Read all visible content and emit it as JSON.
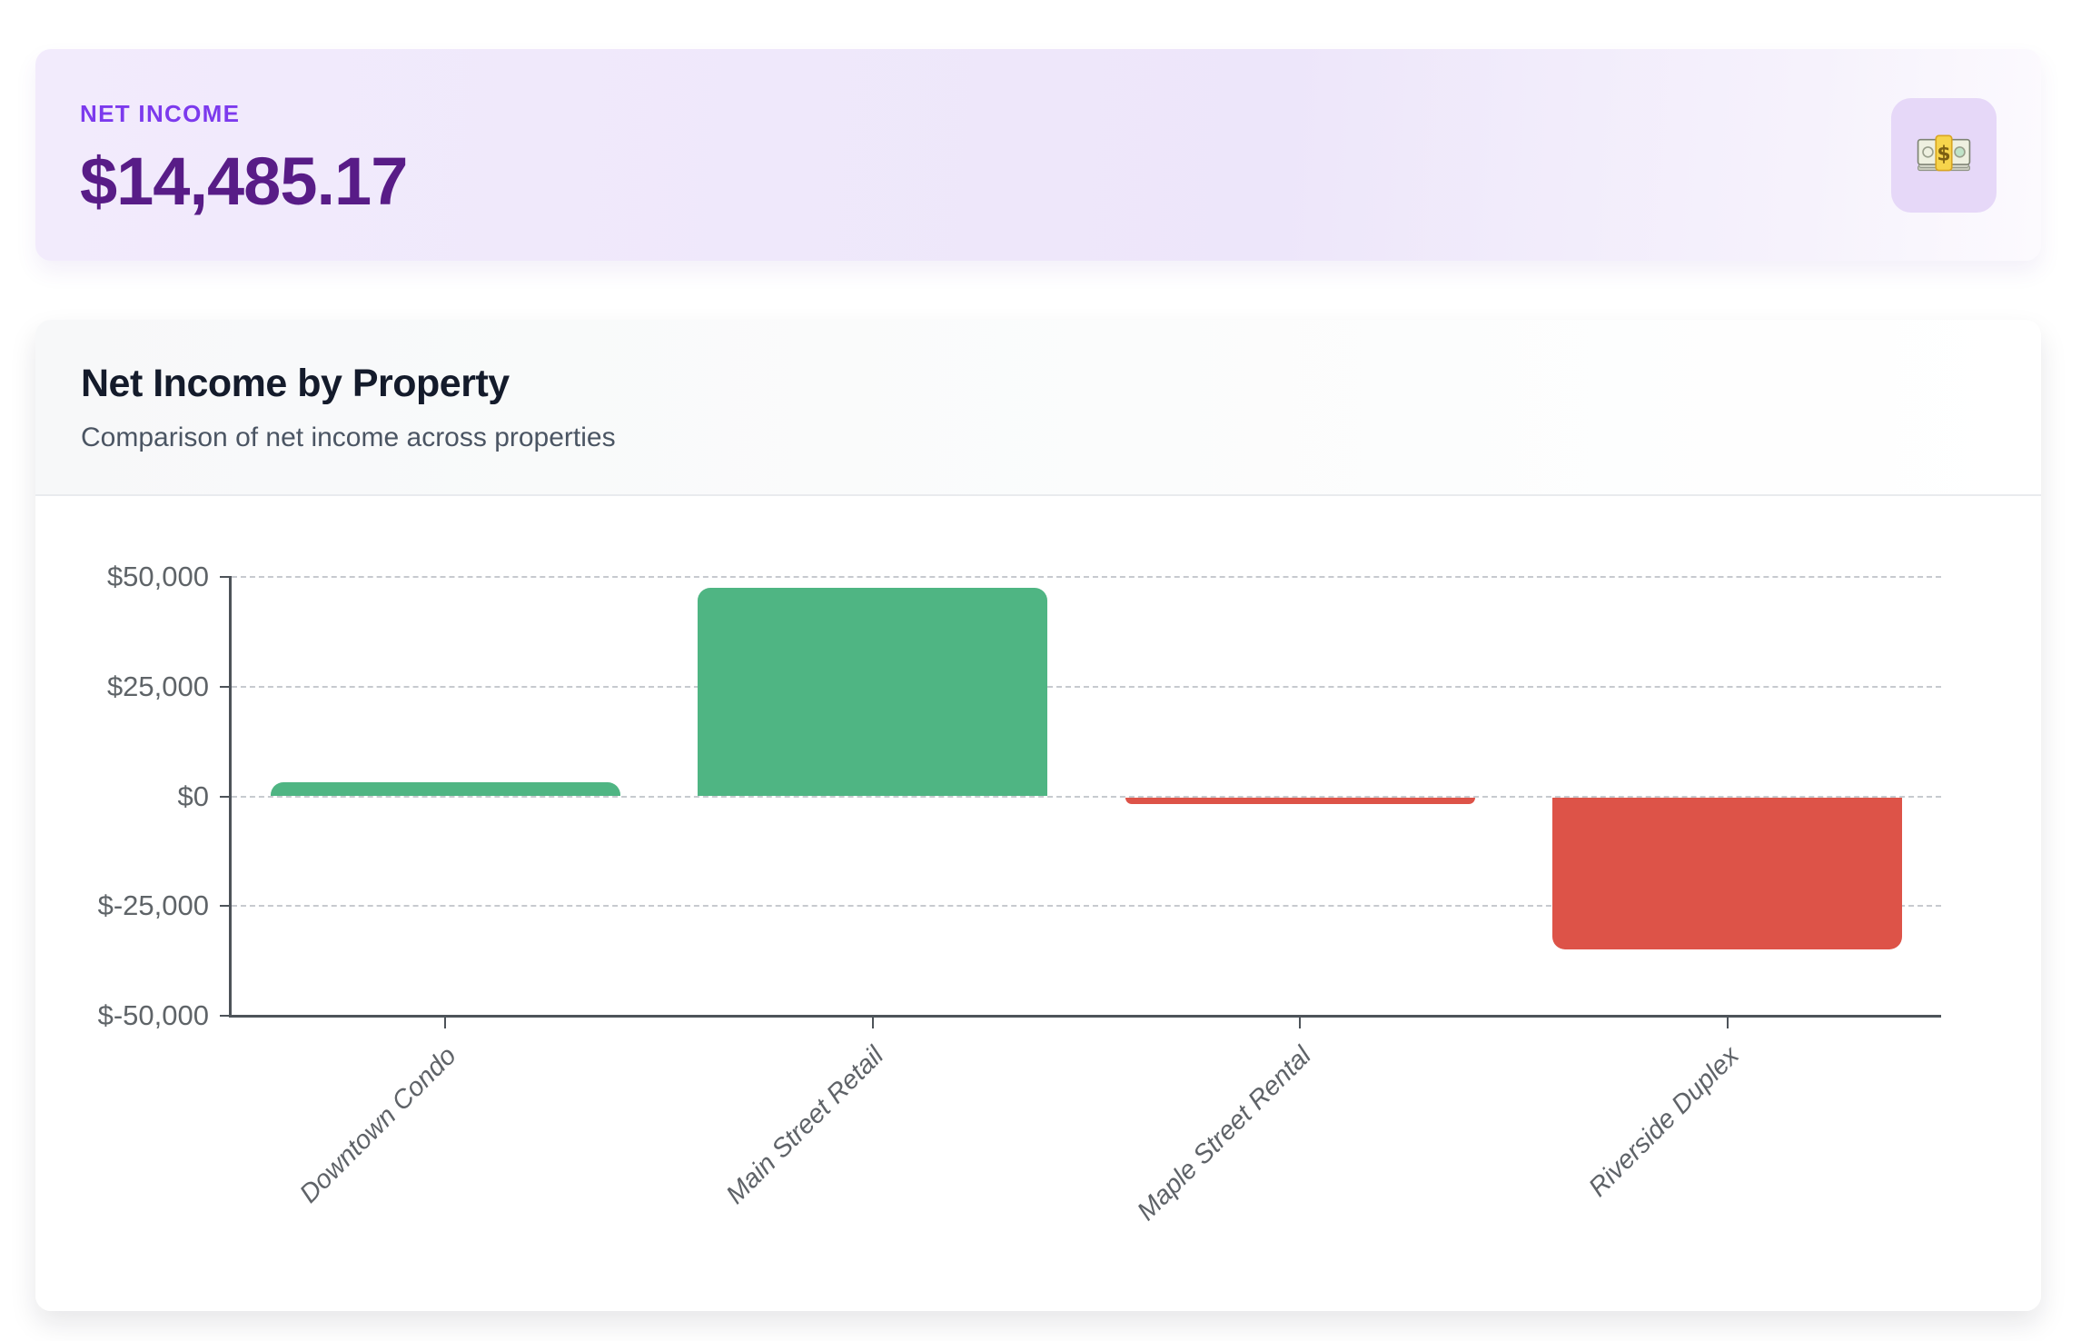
{
  "summary_card": {
    "label": "NET INCOME",
    "value": "$14,485.17",
    "icon": "money-banknote-icon",
    "label_color": "#7c3aed",
    "value_color": "#581c87",
    "badge_bg": "#e6d8f8"
  },
  "chart_card": {
    "title": "Net Income by Property",
    "subtitle": "Comparison of net income across properties"
  },
  "chart_data": {
    "type": "bar",
    "title": "Net Income by Property",
    "categories": [
      "Downtown Condo",
      "Main Street Retail",
      "Maple Street Rental",
      "Riverside Duplex"
    ],
    "values": [
      3150,
      47550,
      -1550,
      -34750
    ],
    "xlabel": "",
    "ylabel": "",
    "ylim": [
      -50000,
      50000
    ],
    "ytick_step": 25000,
    "ytick_labels": [
      "$50,000",
      "$25,000",
      "$0",
      "$-25,000",
      "$-50,000"
    ],
    "grid": true,
    "gridline_style": "dashed",
    "legend_position": "none",
    "positive_color": "#4fb583",
    "negative_color": "#dd5348",
    "axis_color": "#4d5359",
    "tick_label_color": "#5f6468"
  }
}
